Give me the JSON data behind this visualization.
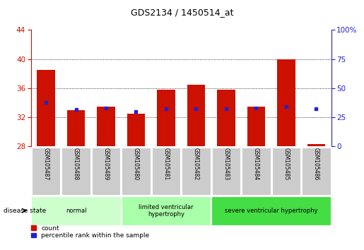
{
  "title": "GDS2134 / 1450514_at",
  "samples": [
    "GSM105487",
    "GSM105488",
    "GSM105489",
    "GSM105480",
    "GSM105481",
    "GSM105482",
    "GSM105483",
    "GSM105484",
    "GSM105485",
    "GSM105486"
  ],
  "counts": [
    38.5,
    33.0,
    33.5,
    32.5,
    35.8,
    36.5,
    35.8,
    33.5,
    40.0,
    28.3
  ],
  "percentiles": [
    37.5,
    31.5,
    33.0,
    30.0,
    32.5,
    32.5,
    32.5,
    33.0,
    34.0,
    32.5
  ],
  "ylim_left": [
    28,
    44
  ],
  "ylim_right": [
    0,
    100
  ],
  "yticks_left": [
    28,
    32,
    36,
    40,
    44
  ],
  "yticks_right": [
    0,
    25,
    50,
    75,
    100
  ],
  "bar_color": "#cc1100",
  "dot_color": "#2222cc",
  "bar_width": 0.6,
  "groups": [
    {
      "label": "normal",
      "start": 0,
      "end": 3,
      "color": "#ccffcc"
    },
    {
      "label": "limited ventricular\nhypertrophy",
      "start": 3,
      "end": 6,
      "color": "#aaffaa"
    },
    {
      "label": "severe ventricular hypertrophy",
      "start": 6,
      "end": 10,
      "color": "#44dd44"
    }
  ],
  "disease_state_label": "disease state",
  "count_label": "count",
  "percentile_label": "percentile rank within the sample",
  "background_color": "#ffffff",
  "plot_bg_color": "#ffffff",
  "tick_label_color_left": "#cc1100",
  "tick_label_color_right": "#2222cc",
  "grid_color": "#000000",
  "sample_bg_color": "#cccccc"
}
